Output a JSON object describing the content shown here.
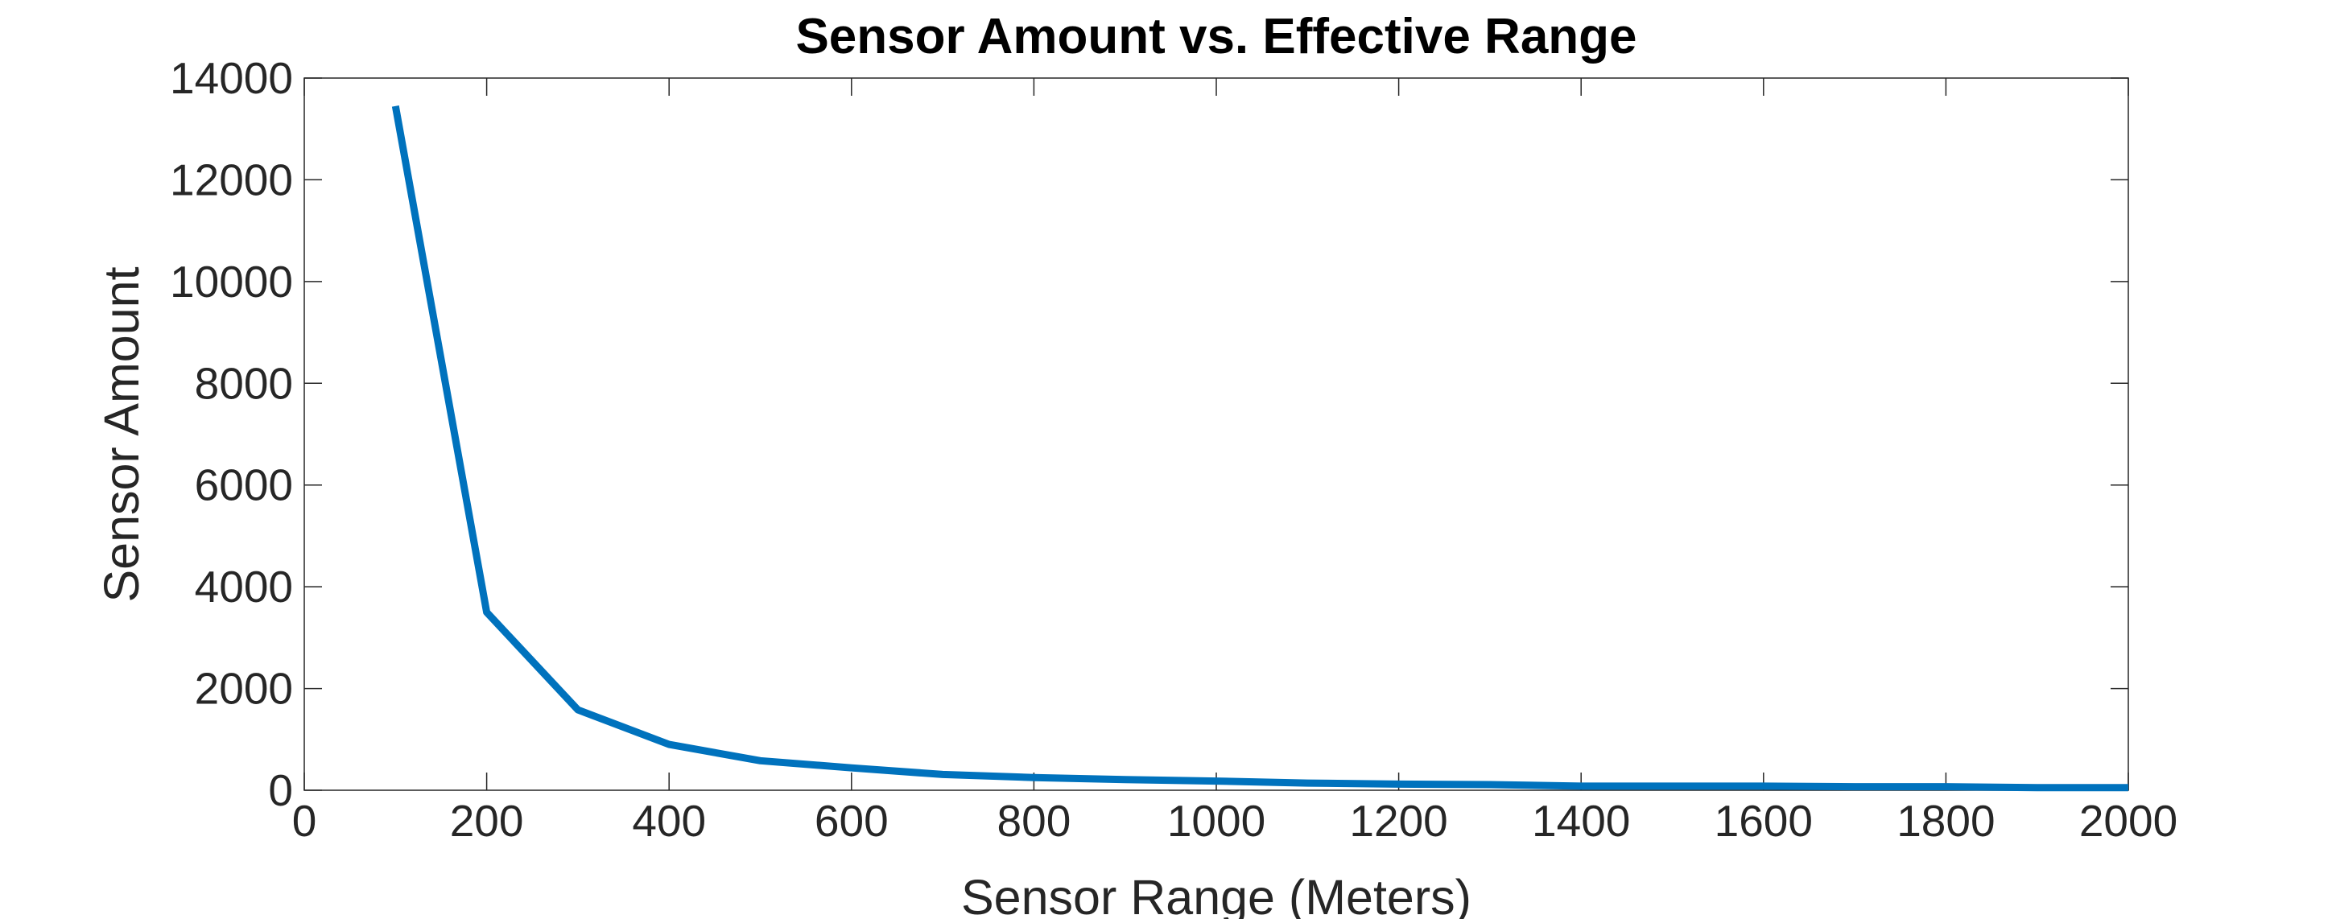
{
  "chart_data": {
    "type": "line",
    "title": "Sensor Amount vs. Effective Range",
    "xlabel": "Sensor Range (Meters)",
    "ylabel": "Sensor Amount",
    "xlim": [
      0,
      2000
    ],
    "ylim": [
      0,
      14000
    ],
    "x_ticks": [
      0,
      200,
      400,
      600,
      800,
      1000,
      1200,
      1400,
      1600,
      1800,
      2000
    ],
    "y_ticks": [
      0,
      2000,
      4000,
      6000,
      8000,
      10000,
      12000,
      14000
    ],
    "x_tick_labels": [
      "0",
      "200",
      "400",
      "600",
      "800",
      "1000",
      "1200",
      "1400",
      "1600",
      "1800",
      "2000"
    ],
    "y_tick_labels": [
      "0",
      "2000",
      "4000",
      "6000",
      "8000",
      "10000",
      "12000",
      "14000"
    ],
    "grid": false,
    "line_color": "#0072BD",
    "series": [
      {
        "x": [
          100,
          200,
          300,
          400,
          500,
          600,
          700,
          800,
          900,
          1000,
          1100,
          1200,
          1300,
          1400,
          1500,
          1600,
          1700,
          1800,
          1900,
          2000
        ],
        "values": [
          13450,
          3500,
          1580,
          900,
          580,
          440,
          310,
          250,
          210,
          180,
          140,
          120,
          110,
          80,
          80,
          80,
          70,
          70,
          50,
          50
        ]
      }
    ]
  }
}
